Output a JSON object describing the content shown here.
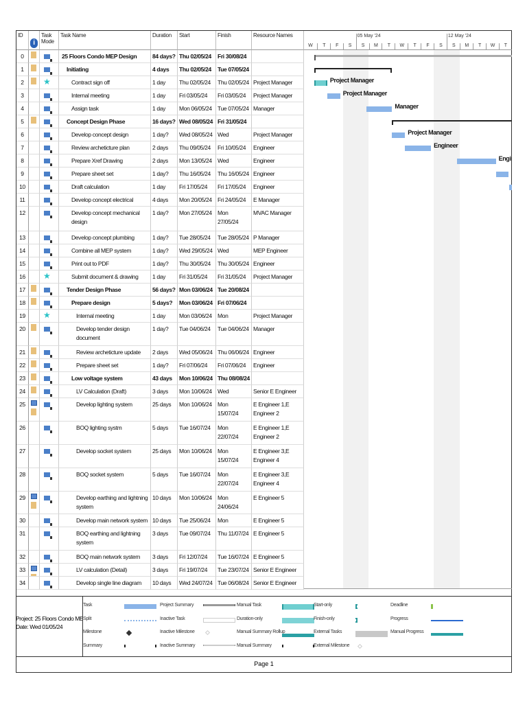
{
  "columns": {
    "id": "ID",
    "info": "i",
    "mode": "Task Mode",
    "name": "Task Name",
    "duration": "Duration",
    "start": "Start",
    "finish": "Finish",
    "resource": "Resource Names"
  },
  "timescale": {
    "weeks": [
      "05 May '24",
      "12 May '24"
    ],
    "days": [
      "W",
      "T",
      "F",
      "S",
      "S",
      "M",
      "T",
      "W",
      "T",
      "F",
      "S",
      "S",
      "M",
      "T",
      "W",
      "T"
    ]
  },
  "colors": {
    "task": "#8ab4e8",
    "manual_task": "#6fcfd0",
    "summary": "#222222",
    "indicator_note": "#e8c07a"
  },
  "tasks": [
    {
      "id": "0",
      "name": "25 Floors Condo MEP Design",
      "duration": "84 days?",
      "start": "Thu 02/05/24",
      "finish": "Fri 30/08/24",
      "resource": "",
      "level": 0,
      "bold": true,
      "mode": "auto",
      "ind": [
        "note"
      ]
    },
    {
      "id": "1",
      "name": "Initiating",
      "duration": "4 days",
      "start": "Thu 02/05/24",
      "finish": "Tue 07/05/24",
      "resource": "",
      "level": 1,
      "bold": true,
      "mode": "auto",
      "ind": [
        "note"
      ]
    },
    {
      "id": "2",
      "name": "Contract sign off",
      "duration": "1 day",
      "start": "Thu 02/05/24",
      "finish": "Thu 02/05/24",
      "resource": "Project Manager",
      "level": 2,
      "bold": false,
      "mode": "manual",
      "ind": [
        "note"
      ]
    },
    {
      "id": "3",
      "name": "Internal meeting",
      "duration": "1 day",
      "start": "Fri 03/05/24",
      "finish": "Fri 03/05/24",
      "resource": "Project Manager",
      "level": 2,
      "bold": false,
      "mode": "auto",
      "ind": []
    },
    {
      "id": "4",
      "name": "Assign task",
      "duration": "1 day",
      "start": "Mon 06/05/24",
      "finish": "Tue 07/05/24",
      "resource": "Manager",
      "level": 2,
      "bold": false,
      "mode": "auto",
      "ind": []
    },
    {
      "id": "5",
      "name": "Concept Design Phase",
      "duration": "16 days?",
      "start": "Wed 08/05/24",
      "finish": "Fri 31/05/24",
      "resource": "",
      "level": 1,
      "bold": true,
      "mode": "auto",
      "ind": [
        "note"
      ]
    },
    {
      "id": "6",
      "name": "Develop concept design document",
      "duration": "1 day?",
      "start": "Wed 08/05/24",
      "finish": "Wed 08/05/24",
      "resource": "Project Manager",
      "level": 2,
      "bold": false,
      "mode": "auto",
      "ind": []
    },
    {
      "id": "7",
      "name": "Review archeticture plan",
      "duration": "2 days",
      "start": "Thu 09/05/24",
      "finish": "Fri 10/05/24",
      "resource": "Engineer",
      "level": 2,
      "bold": false,
      "mode": "auto",
      "ind": []
    },
    {
      "id": "8",
      "name": "Prepare Xref Drawing",
      "duration": "2 days",
      "start": "Mon 13/05/24",
      "finish": "Wed 15/05/24",
      "resource": "Engineer",
      "level": 2,
      "bold": false,
      "mode": "auto",
      "ind": []
    },
    {
      "id": "9",
      "name": "Prepare sheet set",
      "duration": "1 day?",
      "start": "Thu 16/05/24",
      "finish": "Thu 16/05/24",
      "resource": "Engineer",
      "level": 2,
      "bold": false,
      "mode": "auto",
      "ind": []
    },
    {
      "id": "10",
      "name": "Draft calculation",
      "duration": "1 day",
      "start": "Fri 17/05/24",
      "finish": "Fri 17/05/24",
      "resource": "Engineer",
      "level": 2,
      "bold": false,
      "mode": "auto",
      "ind": []
    },
    {
      "id": "11",
      "name": "Develop concept electrical design",
      "duration": "4 days",
      "start": "Mon 20/05/24",
      "finish": "Fri 24/05/24",
      "resource": "E Manager",
      "level": 2,
      "bold": false,
      "mode": "auto",
      "ind": []
    },
    {
      "id": "12",
      "name": "Develop concept mechanical design",
      "duration": "1 day?",
      "start": "Mon 27/05/24",
      "finish": "Mon 27/05/24",
      "resource": "MVAC Manager",
      "level": 2,
      "bold": false,
      "mode": "auto",
      "ind": []
    },
    {
      "id": "13",
      "name": "Develop concept plumbing design",
      "duration": "1 day?",
      "start": "Tue 28/05/24",
      "finish": "Tue 28/05/24",
      "resource": "P Manager",
      "level": 2,
      "bold": false,
      "mode": "auto",
      "ind": []
    },
    {
      "id": "14",
      "name": "Combine all MEP system",
      "duration": "1 day?",
      "start": "Wed 29/05/24",
      "finish": "Wed 29/05/24",
      "resource": "MEP Engineer",
      "level": 2,
      "bold": false,
      "mode": "auto",
      "ind": []
    },
    {
      "id": "15",
      "name": "Print out to PDF",
      "duration": "1 day?",
      "start": "Thu 30/05/24",
      "finish": "Thu 30/05/24",
      "resource": "Engineer",
      "level": 2,
      "bold": false,
      "mode": "auto",
      "ind": []
    },
    {
      "id": "16",
      "name": "Submit document & drawing",
      "duration": "1 day",
      "start": "Fri 31/05/24",
      "finish": "Fri 31/05/24",
      "resource": "Project Manager",
      "level": 2,
      "bold": false,
      "mode": "manual",
      "ind": []
    },
    {
      "id": "17",
      "name": "Tender Design Phase",
      "duration": "56 days?",
      "start": "Mon 03/06/24",
      "finish": "Tue 20/08/24",
      "resource": "",
      "level": 1,
      "bold": true,
      "mode": "auto",
      "ind": [
        "note"
      ]
    },
    {
      "id": "18",
      "name": "Prepare design",
      "duration": "5 days?",
      "start": "Mon 03/06/24",
      "finish": "Fri 07/06/24",
      "resource": "",
      "level": 2,
      "bold": true,
      "mode": "auto",
      "ind": [
        "note"
      ]
    },
    {
      "id": "19",
      "name": "Internal meeting",
      "duration": "1 day",
      "start": "Mon 03/06/24",
      "finish": "Mon 03/06/24",
      "resource": "Project Manager",
      "level": 3,
      "bold": false,
      "mode": "manual",
      "ind": []
    },
    {
      "id": "20",
      "name": "Develop tender design document",
      "duration": "1 day?",
      "start": "Tue 04/06/24",
      "finish": "Tue 04/06/24",
      "resource": "Manager",
      "level": 3,
      "bold": false,
      "mode": "auto",
      "ind": [
        "note"
      ]
    },
    {
      "id": "21",
      "name": "Review archeticture update",
      "duration": "2 days",
      "start": "Wed 05/06/24",
      "finish": "Thu 06/06/24",
      "resource": "Engineer",
      "level": 3,
      "bold": false,
      "mode": "auto",
      "ind": [
        "note"
      ]
    },
    {
      "id": "22",
      "name": "Prepare sheet set",
      "duration": "1 day?",
      "start": "Fri 07/06/24",
      "finish": "Fri 07/06/24",
      "resource": "Engineer",
      "level": 3,
      "bold": false,
      "mode": "auto",
      "ind": [
        "note"
      ]
    },
    {
      "id": "23",
      "name": "Low voltage system",
      "duration": "43 days",
      "start": "Mon 10/06/24",
      "finish": "Thu 08/08/24",
      "resource": "",
      "level": 2,
      "bold": true,
      "mode": "auto",
      "ind": [
        "note"
      ]
    },
    {
      "id": "24",
      "name": "LV Calculation (Draft)",
      "duration": "3 days",
      "start": "Mon 10/06/24",
      "finish": "Wed 12/06/24",
      "resource": "Senior E Engineer",
      "level": 3,
      "bold": false,
      "mode": "auto",
      "ind": [
        "note"
      ]
    },
    {
      "id": "25",
      "name": "Develop lighting system",
      "duration": "25 days",
      "start": "Mon 10/06/24",
      "finish": "Mon 15/07/24",
      "resource": "E Engineer 1,E Engineer 2",
      "level": 3,
      "bold": false,
      "mode": "auto",
      "ind": [
        "calendar",
        "note"
      ]
    },
    {
      "id": "26",
      "name": "BOQ lighting systm",
      "duration": "5 days",
      "start": "Tue 16/07/24",
      "finish": "Mon 22/07/24",
      "resource": "E Engineer 1,E Engineer 2",
      "level": 3,
      "bold": false,
      "mode": "auto",
      "ind": []
    },
    {
      "id": "27",
      "name": "Develop socket system",
      "duration": "25 days",
      "start": "Mon 10/06/24",
      "finish": "Mon 15/07/24",
      "resource": "E Engineer 3,E Engineer 4",
      "level": 3,
      "bold": false,
      "mode": "auto",
      "ind": []
    },
    {
      "id": "28",
      "name": "BOQ socket system",
      "duration": "5 days",
      "start": "Tue 16/07/24",
      "finish": "Mon 22/07/24",
      "resource": "E Engineer 3,E Engineer 4",
      "level": 3,
      "bold": false,
      "mode": "auto",
      "ind": []
    },
    {
      "id": "29",
      "name": "Develop earthing and lightning system",
      "duration": "10 days",
      "start": "Mon 10/06/24",
      "finish": "Mon 24/06/24",
      "resource": "E Engineer 5",
      "level": 3,
      "bold": false,
      "mode": "auto",
      "ind": [
        "calendar",
        "note"
      ]
    },
    {
      "id": "30",
      "name": "Develop main network system",
      "duration": "10 days",
      "start": "Tue 25/06/24",
      "finish": "Mon 08/07/24",
      "resource": "E Engineer 5",
      "level": 3,
      "bold": false,
      "mode": "auto",
      "ind": []
    },
    {
      "id": "31",
      "name": "BOQ earthing and lightning system",
      "duration": "3 days",
      "start": "Tue 09/07/24",
      "finish": "Thu 11/07/24",
      "resource": "E Engineer 5",
      "level": 3,
      "bold": false,
      "mode": "auto",
      "ind": []
    },
    {
      "id": "32",
      "name": "BOQ main network system",
      "duration": "3 days",
      "start": "Fri 12/07/24",
      "finish": "Tue 16/07/24",
      "resource": "E Engineer 5",
      "level": 3,
      "bold": false,
      "mode": "auto",
      "ind": []
    },
    {
      "id": "33",
      "name": "LV calculation (Detail)",
      "duration": "3 days",
      "start": "Fri 19/07/24",
      "finish": "Tue 23/07/24",
      "resource": "Senior E Engineer",
      "level": 3,
      "bold": false,
      "mode": "auto",
      "ind": [
        "calendar",
        "note"
      ]
    },
    {
      "id": "34",
      "name": "Develop single line diagram",
      "duration": "10 days",
      "start": "Wed 24/07/24",
      "finish": "Tue 06/08/24",
      "resource": "Senior E Engineer",
      "level": 3,
      "bold": false,
      "mode": "auto",
      "ind": []
    }
  ],
  "legend": {
    "project": "Project: 25 Floors Condo MEP D",
    "date": "Date: Wed 01/05/24",
    "items": [
      {
        "label": "Task",
        "sym": "task"
      },
      {
        "label": "Split",
        "sym": "split"
      },
      {
        "label": "Milestone",
        "sym": "milestone"
      },
      {
        "label": "Summary",
        "sym": "summary"
      },
      {
        "label": "Project Summary",
        "sym": "psummary"
      },
      {
        "label": "Inactive Task",
        "sym": "itask"
      },
      {
        "label": "Inactive Milestone",
        "sym": "imilestone"
      },
      {
        "label": "Inactive Summary",
        "sym": "isummary"
      },
      {
        "label": "Manual Task",
        "sym": "mtask"
      },
      {
        "label": "Duration-only",
        "sym": "donly"
      },
      {
        "label": "Manual Summary Rollup",
        "sym": "msr"
      },
      {
        "label": "Manual Summary",
        "sym": "summary"
      },
      {
        "label": "Start-only",
        "sym": "sonly"
      },
      {
        "label": "Finish-only",
        "sym": "fonly"
      },
      {
        "label": "External Tasks",
        "sym": "ext"
      },
      {
        "label": "External Milestone",
        "sym": "imilestone"
      },
      {
        "label": "Deadline",
        "sym": "deadline"
      },
      {
        "label": "Progress",
        "sym": "progress"
      },
      {
        "label": "Manual Progress",
        "sym": "mprogress"
      }
    ]
  },
  "footer": {
    "page": "Page 1"
  }
}
